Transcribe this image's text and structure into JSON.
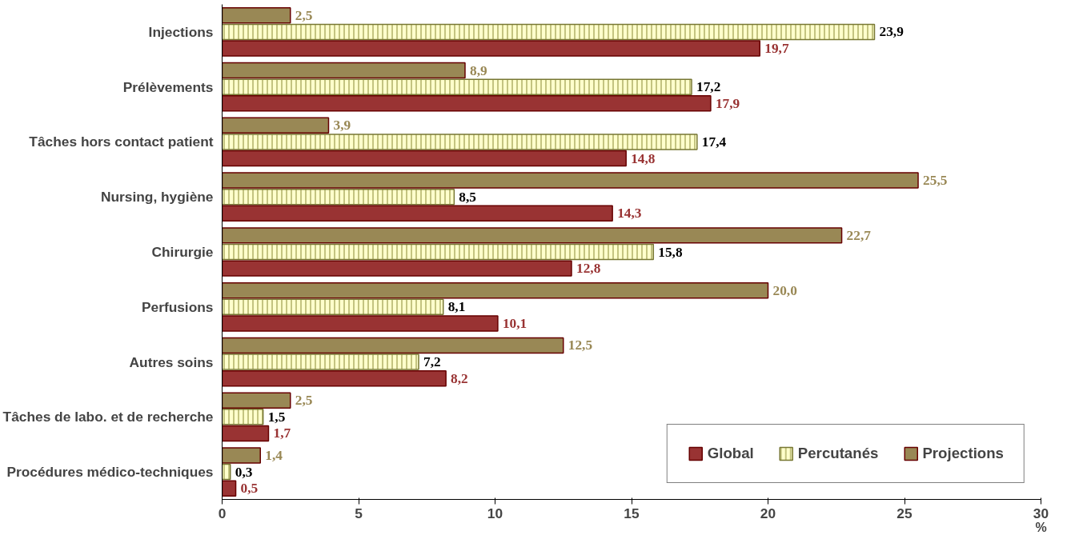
{
  "chart_data": {
    "type": "bar",
    "orientation": "horizontal",
    "xlabel": "%",
    "categories": [
      "Injections",
      "Prélèvements",
      "Tâches hors contact patient",
      "Nursing, hygiène",
      "Chirurgie",
      "Perfusions",
      "Autres soins",
      "Tâches de labo. et de recherche",
      "Procédures médico-techniques"
    ],
    "series": [
      {
        "name": "Projections",
        "color": "#998855",
        "values": [
          2.5,
          8.9,
          3.9,
          25.5,
          22.7,
          20.0,
          12.5,
          2.5,
          1.4
        ],
        "value_labels": [
          "2,5",
          "8,9",
          "3,9",
          "25,5",
          "22,7",
          "20,0",
          "12,5",
          "2,5",
          "1,4"
        ]
      },
      {
        "name": "Percutanés",
        "color": "#ffffcc",
        "values": [
          23.9,
          17.2,
          17.4,
          8.5,
          15.8,
          8.1,
          7.2,
          1.5,
          0.3
        ],
        "value_labels": [
          "23,9",
          "17,2",
          "17,4",
          "8,5",
          "15,8",
          "8,1",
          "7,2",
          "1,5",
          "0,3"
        ]
      },
      {
        "name": "Global",
        "color": "#993333",
        "values": [
          19.7,
          17.9,
          14.8,
          14.3,
          12.8,
          10.1,
          8.2,
          1.7,
          0.5
        ],
        "value_labels": [
          "19,7",
          "17,9",
          "14,8",
          "14,3",
          "12,8",
          "10,1",
          "8,2",
          "1,7",
          "0,5"
        ]
      }
    ],
    "xlim": [
      0,
      30
    ],
    "xticks": [
      0,
      5,
      10,
      15,
      20,
      25,
      30
    ],
    "grid": false,
    "legend": "bottom right"
  }
}
